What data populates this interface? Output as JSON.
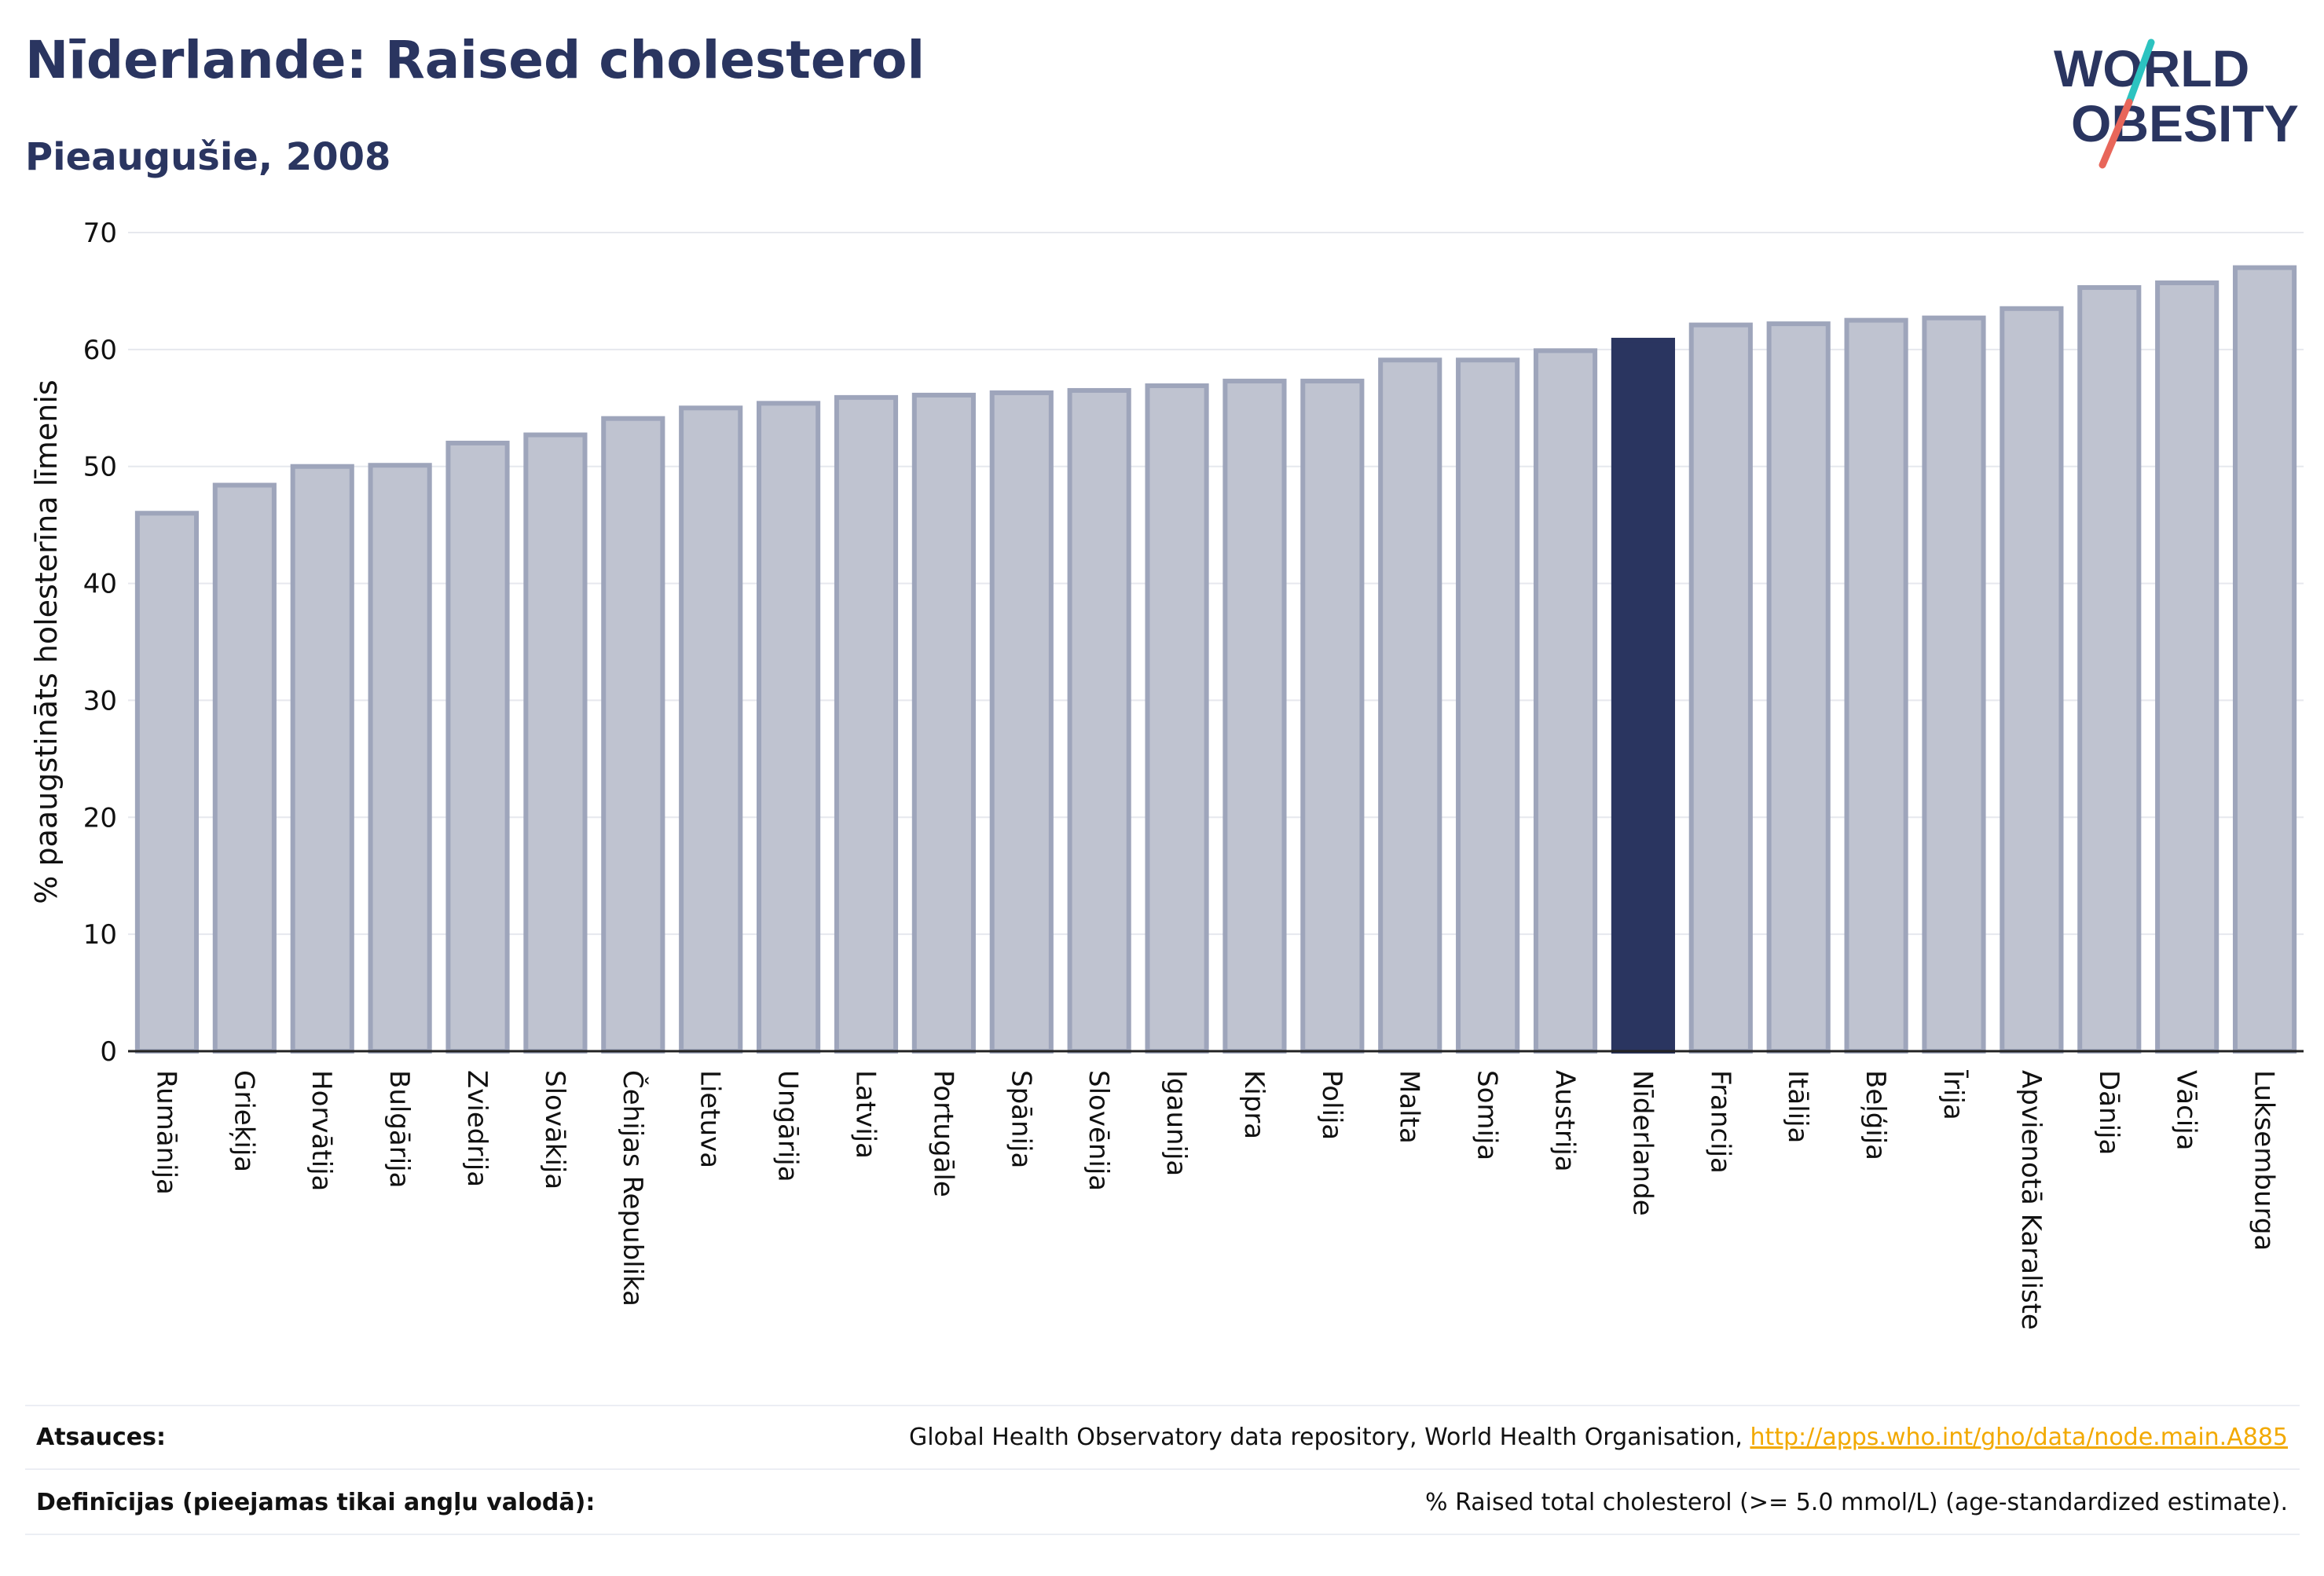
{
  "title": "Nīderlande: Raised cholesterol",
  "subtitle": "Pieaugušie, 2008",
  "logo": {
    "line1": "WORLD",
    "line2": "OBESITY"
  },
  "colors": {
    "bar": "#bfc3d0",
    "bar_border": "#9ea5bb",
    "highlight": "#2a3560",
    "grid": "#e6e8ee",
    "axis": "#222222",
    "link": "#f2a900"
  },
  "chart_data": {
    "type": "bar",
    "ylabel": "% paaugstināts holesterīna līmenis",
    "ylim": [
      0,
      70
    ],
    "yticks": [
      0,
      10,
      20,
      30,
      40,
      50,
      60,
      70
    ],
    "grid": true,
    "highlight": "Nīderlande",
    "categories": [
      "Rumānija",
      "Grieķija",
      "Horvātija",
      "Bulgārija",
      "Zviedrija",
      "Slovākija",
      "Čehijas Republika",
      "Lietuva",
      "Ungārija",
      "Latvija",
      "Portugāle",
      "Spānija",
      "Slovēnija",
      "Igaunija",
      "Kipra",
      "Polija",
      "Malta",
      "Somija",
      "Austrija",
      "Nīderlande",
      "Francija",
      "Itālija",
      "Beļģija",
      "Īrija",
      "Apvienotā Karaliste",
      "Dānija",
      "Vācija",
      "Luksemburga"
    ],
    "values": [
      46.0,
      48.4,
      50.0,
      50.1,
      52.0,
      52.7,
      54.1,
      55.0,
      55.4,
      55.9,
      56.1,
      56.3,
      56.5,
      56.9,
      57.3,
      57.3,
      59.1,
      59.1,
      59.9,
      60.8,
      62.1,
      62.2,
      62.5,
      62.7,
      63.5,
      65.3,
      65.7,
      67.0
    ]
  },
  "footer": {
    "sources_label": "Atsauces:",
    "sources_text": "Global Health Observatory data repository, World Health Organisation, ",
    "sources_link": "http://apps.who.int/gho/data/node.main.A885",
    "definitions_label": "Definīcijas (pieejamas tikai angļu valodā):",
    "definitions_text": "% Raised total cholesterol (>= 5.0 mmol/L) (age-standardized estimate)."
  }
}
